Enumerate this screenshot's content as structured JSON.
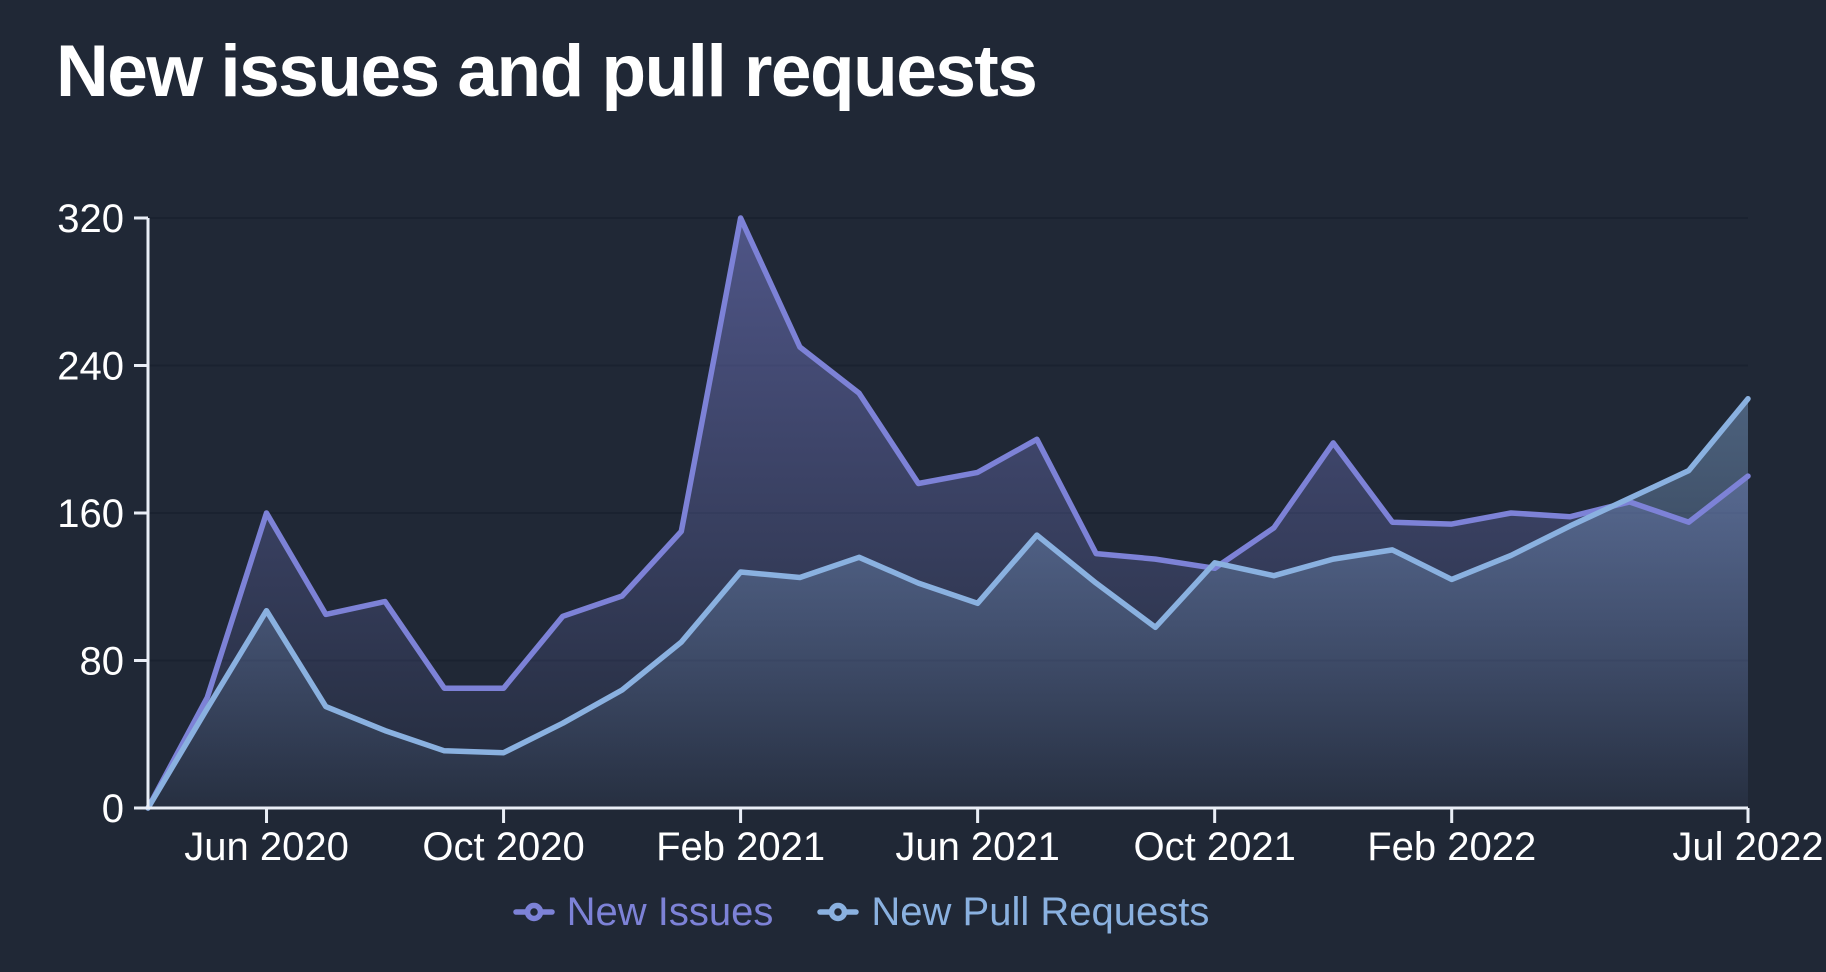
{
  "title": "New issues and pull requests",
  "colors": {
    "background": "#202836",
    "gridline": "#1a2230",
    "axis": "#e9eef6",
    "axis_label": "#ffffff",
    "issues": "#7d82d7",
    "pull_requests": "#8ab1e0"
  },
  "legend": {
    "items": [
      {
        "label": "New Issues",
        "color": "#7d82d7"
      },
      {
        "label": "New Pull Requests",
        "color": "#8ab1e0"
      }
    ]
  },
  "chart_data": {
    "type": "area",
    "title": "New issues and pull requests",
    "x": [
      "Apr 2020",
      "May 2020",
      "Jun 2020",
      "Jul 2020",
      "Aug 2020",
      "Sep 2020",
      "Oct 2020",
      "Nov 2020",
      "Dec 2020",
      "Jan 2021",
      "Feb 2021",
      "Mar 2021",
      "Apr 2021",
      "May 2021",
      "Jun 2021",
      "Jul 2021",
      "Aug 2021",
      "Sep 2021",
      "Oct 2021",
      "Nov 2021",
      "Dec 2021",
      "Jan 2022",
      "Feb 2022",
      "Mar 2022",
      "Apr 2022",
      "May 2022",
      "Jun 2022",
      "Jul 2022"
    ],
    "series": [
      {
        "name": "New Issues",
        "color": "#7d82d7",
        "values": [
          0,
          60,
          160,
          105,
          112,
          65,
          65,
          104,
          115,
          150,
          320,
          250,
          225,
          176,
          182,
          200,
          138,
          135,
          130,
          152,
          198,
          155,
          154,
          160,
          158,
          166,
          155,
          180
        ]
      },
      {
        "name": "New Pull Requests",
        "color": "#8ab1e0",
        "values": [
          0,
          54,
          107,
          55,
          42,
          31,
          30,
          46,
          64,
          90,
          128,
          125,
          136,
          122,
          111,
          148,
          122,
          98,
          133,
          126,
          135,
          140,
          124,
          137,
          153,
          168,
          183,
          222
        ]
      }
    ],
    "xlabel": "",
    "ylabel": "",
    "ylim": [
      0,
      320
    ],
    "yticks": [
      0,
      80,
      160,
      240,
      320
    ],
    "xtick_labels": [
      "Jun 2020",
      "Oct 2020",
      "Feb 2021",
      "Jun 2021",
      "Oct 2021",
      "Feb 2022",
      "Jul 2022"
    ],
    "xtick_indices": [
      2,
      6,
      10,
      14,
      18,
      22,
      27
    ],
    "grid": true,
    "legend_position": "bottom"
  }
}
